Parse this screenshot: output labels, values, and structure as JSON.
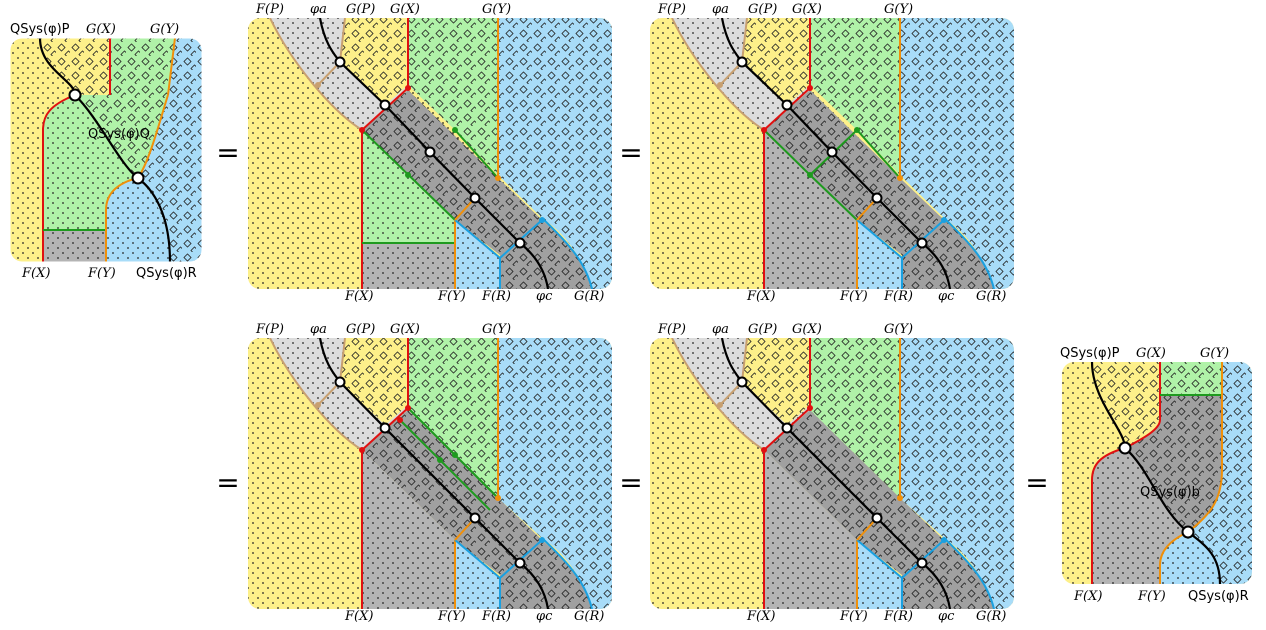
{
  "equals_sign": "=",
  "labels": {
    "F_P": "F(P)",
    "phi_a": "φa",
    "G_P": "G(P)",
    "G_X": "G(X)",
    "G_Y": "G(Y)",
    "F_X": "F(X)",
    "F_Y": "F(Y)",
    "F_R": "F(R)",
    "phi_c": "φc",
    "G_R": "G(R)",
    "QSys_P": "QSys(φ)P",
    "QSys_Q": "QSys(φ)Q",
    "QSys_R": "QSys(φ)R",
    "QSys_b": "QSys(φ)b"
  },
  "colors": {
    "yellow": "#fdf08a",
    "green": "#b0f2a8",
    "blue": "#a8dcf8",
    "gray": "#b4b4b4",
    "light_gray": "#dcdcdc",
    "dark_gray": "#a0a0a0",
    "red": "#e01010",
    "orange": "#f0900a",
    "dark_green": "#1e9a1e",
    "cyan": "#1aa0e0",
    "tan": "#c8a070"
  }
}
